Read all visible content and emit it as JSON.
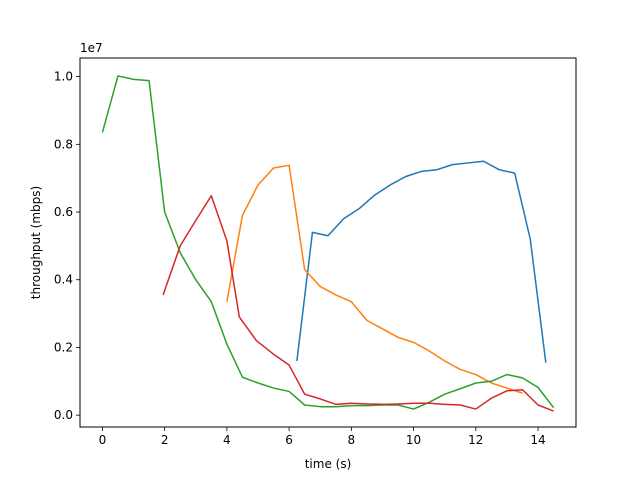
{
  "chart_data": {
    "type": "line",
    "xlabel": "time (s)",
    "ylabel": "throughput (mbps)",
    "y_offset_label": "1e7",
    "xlim": [
      -0.72,
      15.22
    ],
    "ylim": [
      -0.35,
      10.55
    ],
    "x_ticks": [
      0,
      2,
      4,
      6,
      8,
      10,
      12,
      14
    ],
    "x_tick_labels": [
      "0",
      "2",
      "4",
      "6",
      "8",
      "10",
      "12",
      "14"
    ],
    "y_ticks": [
      0,
      2,
      4,
      6,
      8,
      10
    ],
    "y_tick_labels": [
      "0.0",
      "0.2",
      "0.4",
      "0.6",
      "0.8",
      "1.0"
    ],
    "grid": false,
    "series": [
      {
        "color": "#1f77b4",
        "x": [
          6.25,
          6.75,
          7.25,
          7.75,
          8.25,
          8.75,
          9.25,
          9.75,
          10.25,
          10.75,
          11.25,
          11.75,
          12.25,
          12.75,
          13.25,
          13.75,
          14.25
        ],
        "y": [
          1.6,
          5.4,
          5.3,
          5.8,
          6.1,
          6.5,
          6.8,
          7.05,
          7.2,
          7.25,
          7.4,
          7.45,
          7.5,
          7.25,
          7.15,
          5.2,
          1.55
        ]
      },
      {
        "color": "#ff7f0e",
        "x": [
          4.0,
          4.5,
          5.0,
          5.5,
          6.0,
          6.5,
          7.0,
          7.5,
          8.0,
          8.5,
          9.0,
          9.5,
          10.0,
          10.5,
          11.0,
          11.5,
          12.0,
          12.5,
          13.0,
          13.5
        ],
        "y": [
          3.35,
          5.9,
          6.8,
          7.3,
          7.38,
          4.3,
          3.8,
          3.55,
          3.35,
          2.8,
          2.55,
          2.3,
          2.15,
          1.9,
          1.6,
          1.35,
          1.2,
          0.95,
          0.8,
          0.65
        ]
      },
      {
        "color": "#2ca02c",
        "x": [
          0.0,
          0.5,
          1.0,
          1.5,
          2.0,
          2.5,
          3.0,
          3.5,
          4.0,
          4.5,
          5.0,
          5.5,
          6.0,
          6.5,
          7.0,
          7.5,
          8.0,
          8.5,
          9.0,
          9.5,
          10.0,
          10.5,
          11.0,
          11.5,
          12.0,
          12.5,
          13.0,
          13.5,
          14.0,
          14.5
        ],
        "y": [
          8.35,
          10.02,
          9.92,
          9.88,
          6.0,
          4.8,
          4.0,
          3.35,
          2.1,
          1.12,
          0.95,
          0.8,
          0.7,
          0.3,
          0.25,
          0.25,
          0.28,
          0.28,
          0.3,
          0.3,
          0.18,
          0.38,
          0.62,
          0.78,
          0.95,
          1.0,
          1.2,
          1.1,
          0.82,
          0.22
        ]
      },
      {
        "color": "#d62728",
        "x": [
          1.95,
          2.5,
          3.0,
          3.5,
          4.0,
          4.4,
          4.95,
          5.5,
          6.0,
          6.5,
          7.0,
          7.5,
          8.0,
          8.5,
          9.0,
          9.5,
          10.0,
          10.5,
          11.0,
          11.5,
          12.0,
          12.5,
          13.0,
          13.5,
          14.0,
          14.5
        ],
        "y": [
          3.55,
          5.0,
          5.75,
          6.48,
          5.15,
          2.9,
          2.2,
          1.8,
          1.48,
          0.62,
          0.48,
          0.32,
          0.35,
          0.33,
          0.32,
          0.33,
          0.35,
          0.35,
          0.32,
          0.3,
          0.18,
          0.5,
          0.72,
          0.75,
          0.3,
          0.12
        ]
      }
    ]
  }
}
